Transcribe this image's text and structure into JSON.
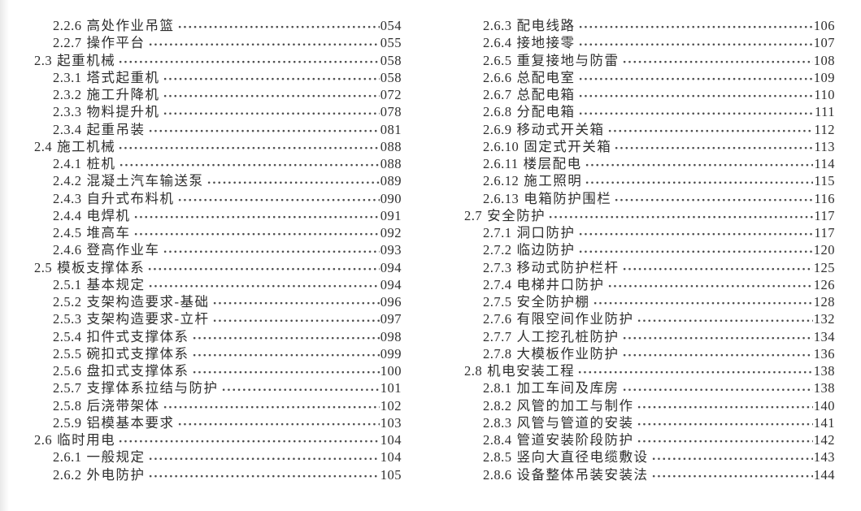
{
  "page": {
    "background": "#ffffff",
    "text_color": "#2e2e2e",
    "dot_color": "#4a4a4a"
  },
  "toc": {
    "columns": [
      {
        "name": "left",
        "entries": [
          {
            "no": "2.2.6",
            "title": "高处作业吊篮",
            "page": "054",
            "level": 2
          },
          {
            "no": "2.2.7",
            "title": "操作平台",
            "page": "055",
            "level": 2
          },
          {
            "no": "2.3",
            "title": "起重机械",
            "page": "058",
            "level": 1
          },
          {
            "no": "2.3.1",
            "title": "塔式起重机",
            "page": "058",
            "level": 2
          },
          {
            "no": "2.3.2",
            "title": "施工升降机",
            "page": "072",
            "level": 2
          },
          {
            "no": "2.3.3",
            "title": "物料提升机",
            "page": "078",
            "level": 2
          },
          {
            "no": "2.3.4",
            "title": "起重吊装",
            "page": "081",
            "level": 2
          },
          {
            "no": "2.4",
            "title": "施工机械",
            "page": "088",
            "level": 1
          },
          {
            "no": "2.4.1",
            "title": "桩机",
            "page": "088",
            "level": 2
          },
          {
            "no": "2.4.2",
            "title": "混凝土汽车输送泵",
            "page": "089",
            "level": 2
          },
          {
            "no": "2.4.3",
            "title": "自升式布料机",
            "page": "090",
            "level": 2
          },
          {
            "no": "2.4.4",
            "title": "电焊机",
            "page": "091",
            "level": 2
          },
          {
            "no": "2.4.5",
            "title": "堆高车",
            "page": "092",
            "level": 2
          },
          {
            "no": "2.4.6",
            "title": "登高作业车",
            "page": "093",
            "level": 2
          },
          {
            "no": "2.5",
            "title": "模板支撑体系",
            "page": "094",
            "level": 1
          },
          {
            "no": "2.5.1",
            "title": "基本规定",
            "page": "094",
            "level": 2
          },
          {
            "no": "2.5.2",
            "title": "支架构造要求-基础",
            "page": "096",
            "level": 2
          },
          {
            "no": "2.5.3",
            "title": "支架构造要求-立杆",
            "page": "097",
            "level": 2
          },
          {
            "no": "2.5.4",
            "title": "扣件式支撑体系",
            "page": "098",
            "level": 2
          },
          {
            "no": "2.5.5",
            "title": "碗扣式支撑体系",
            "page": "099",
            "level": 2
          },
          {
            "no": "2.5.6",
            "title": "盘扣式支撑体系",
            "page": "100",
            "level": 2
          },
          {
            "no": "2.5.7",
            "title": "支撑体系拉结与防护",
            "page": "101",
            "level": 2
          },
          {
            "no": "2.5.8",
            "title": "后浇带架体",
            "page": "102",
            "level": 2
          },
          {
            "no": "2.5.9",
            "title": "铝模基本要求",
            "page": "103",
            "level": 2
          },
          {
            "no": "2.6",
            "title": "临时用电",
            "page": "104",
            "level": 1
          },
          {
            "no": "2.6.1",
            "title": "一般规定",
            "page": "104",
            "level": 2
          },
          {
            "no": "2.6.2",
            "title": "外电防护",
            "page": "105",
            "level": 2
          }
        ]
      },
      {
        "name": "right",
        "entries": [
          {
            "no": "2.6.3",
            "title": "配电线路",
            "page": "106",
            "level": 2
          },
          {
            "no": "2.6.4",
            "title": "接地接零",
            "page": "107",
            "level": 2
          },
          {
            "no": "2.6.5",
            "title": "重复接地与防雷",
            "page": "108",
            "level": 2
          },
          {
            "no": "2.6.6",
            "title": "总配电室",
            "page": "109",
            "level": 2
          },
          {
            "no": "2.6.7",
            "title": "总配电箱",
            "page": "110",
            "level": 2
          },
          {
            "no": "2.6.8",
            "title": "分配电箱",
            "page": "111",
            "level": 2
          },
          {
            "no": "2.6.9",
            "title": "移动式开关箱",
            "page": "112",
            "level": 2
          },
          {
            "no": "2.6.10",
            "title": "固定式开关箱",
            "page": "113",
            "level": 2
          },
          {
            "no": "2.6.11",
            "title": "楼层配电",
            "page": "114",
            "level": 2
          },
          {
            "no": "2.6.12",
            "title": "施工照明",
            "page": "115",
            "level": 2
          },
          {
            "no": "2.6.13",
            "title": "电箱防护围栏",
            "page": "116",
            "level": 2
          },
          {
            "no": "2.7",
            "title": "安全防护",
            "page": "117",
            "level": 1
          },
          {
            "no": "2.7.1",
            "title": "洞口防护",
            "page": "117",
            "level": 2
          },
          {
            "no": "2.7.2",
            "title": "临边防护",
            "page": "120",
            "level": 2
          },
          {
            "no": "2.7.3",
            "title": "移动式防护栏杆",
            "page": "125",
            "level": 2
          },
          {
            "no": "2.7.4",
            "title": "电梯井口防护",
            "page": "126",
            "level": 2
          },
          {
            "no": "2.7.5",
            "title": "安全防护棚",
            "page": "128",
            "level": 2
          },
          {
            "no": "2.7.6",
            "title": "有限空间作业防护",
            "page": "132",
            "level": 2
          },
          {
            "no": "2.7.7",
            "title": "人工挖孔桩防护",
            "page": "134",
            "level": 2
          },
          {
            "no": "2.7.8",
            "title": "大模板作业防护",
            "page": "136",
            "level": 2
          },
          {
            "no": "2.8",
            "title": "机电安装工程",
            "page": "138",
            "level": 1
          },
          {
            "no": "2.8.1",
            "title": "加工车间及库房",
            "page": "138",
            "level": 2
          },
          {
            "no": "2.8.2",
            "title": "风管的加工与制作",
            "page": "140",
            "level": 2
          },
          {
            "no": "2.8.3",
            "title": "风管与管道的安装",
            "page": "141",
            "level": 2
          },
          {
            "no": "2.8.4",
            "title": "管道安装阶段防护",
            "page": "142",
            "level": 2
          },
          {
            "no": "2.8.5",
            "title": "竖向大直径电缆敷设",
            "page": "143",
            "level": 2
          },
          {
            "no": "2.8.6",
            "title": "设备整体吊装安装法",
            "page": "144",
            "level": 2
          }
        ]
      }
    ]
  }
}
